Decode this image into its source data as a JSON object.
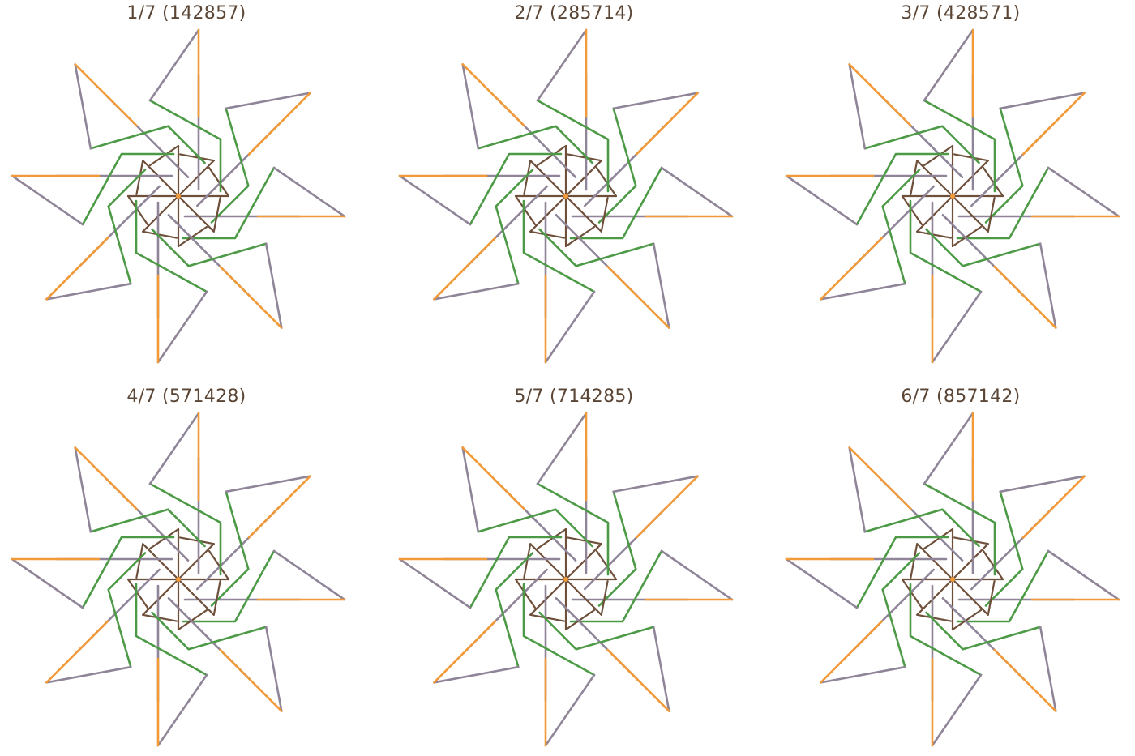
{
  "panels": [
    {
      "title": "1/7 (142857)",
      "digits": "142857"
    },
    {
      "title": "2/7 (285714)",
      "digits": "285714"
    },
    {
      "title": "3/7 (428571)",
      "digits": "428571"
    },
    {
      "title": "4/7 (571428)",
      "digits": "571428"
    },
    {
      "title": "5/7 (714285)",
      "digits": "714285"
    },
    {
      "title": "6/7 (857142)",
      "digits": "857142"
    }
  ],
  "colors": {
    "gray": "#8f8498",
    "orange": "#f29a38",
    "green": "#4c9a46",
    "brown": "#6e4f3a",
    "title": "#5b4636"
  }
}
